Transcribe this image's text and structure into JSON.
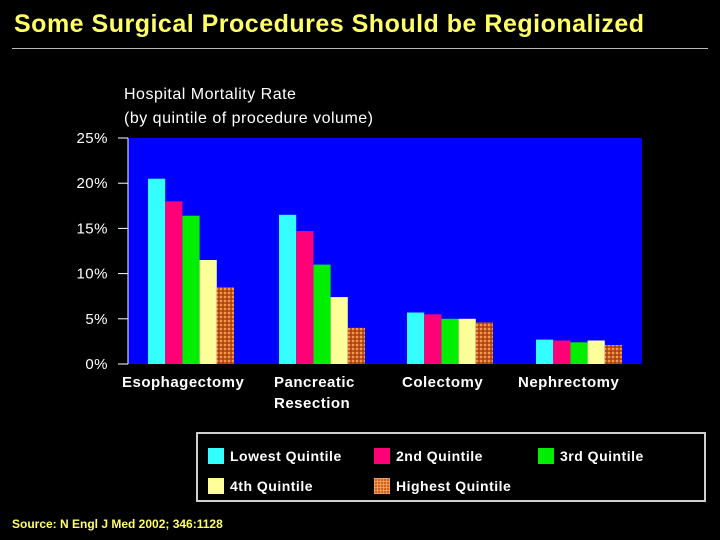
{
  "slide": {
    "title": "Some Surgical Procedures Should be Regionalized",
    "source": "Source: N Engl J Med 2002; 346:1128"
  },
  "colors": {
    "background": "#000000",
    "plot_background": "#0000ff",
    "title": "#ffff66",
    "lowest": "#33ffff",
    "second": "#ff0077",
    "third": "#00ee00",
    "fourth": "#ffff99",
    "highest": "#cc5a1e"
  },
  "chart_data": {
    "type": "bar",
    "title_line1": "Hospital Mortality Rate",
    "title_line2": "(by quintile of procedure volume)",
    "categories": [
      [
        "Esophagectomy"
      ],
      [
        "Pancreatic",
        "Resection"
      ],
      [
        "Colectomy"
      ],
      [
        "Nephrectomy"
      ]
    ],
    "ylim": [
      0,
      25
    ],
    "yticks": [
      {
        "value": 0,
        "label": "0%"
      },
      {
        "value": 5,
        "label": "5%"
      },
      {
        "value": 10,
        "label": "10%"
      },
      {
        "value": 15,
        "label": "15%"
      },
      {
        "value": 20,
        "label": "20%"
      },
      {
        "value": 25,
        "label": "25%"
      }
    ],
    "series": [
      {
        "name": "Lowest Quintile",
        "key": "lowest",
        "values": [
          20.5,
          16.5,
          5.7,
          2.7
        ]
      },
      {
        "name": "2nd Quintile",
        "key": "second",
        "values": [
          18.0,
          14.7,
          5.5,
          2.6
        ]
      },
      {
        "name": "3rd Quintile",
        "key": "third",
        "values": [
          16.4,
          11.0,
          5.0,
          2.4
        ]
      },
      {
        "name": "4th Quintile",
        "key": "fourth",
        "values": [
          11.5,
          7.4,
          5.0,
          2.6
        ]
      },
      {
        "name": "Highest Quintile",
        "key": "highest",
        "values": [
          8.5,
          4.0,
          4.6,
          2.1
        ]
      }
    ],
    "legend_position": "bottom"
  }
}
